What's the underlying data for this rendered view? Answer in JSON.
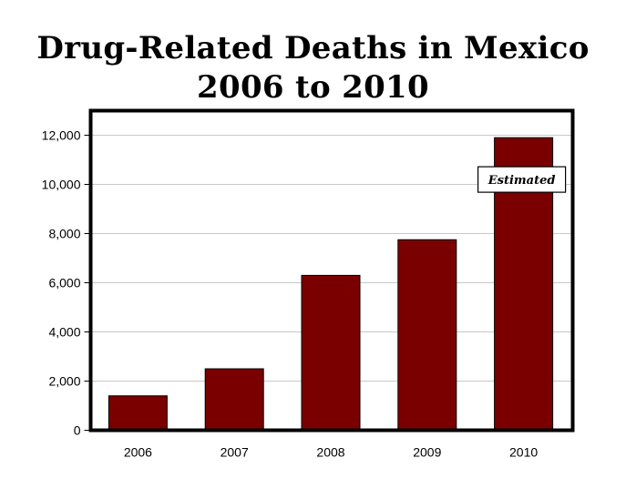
{
  "title_line1": "Drug-Related Deaths in Mexico",
  "title_line2": "2006 to 2010",
  "chart_data": {
    "type": "bar",
    "title": "Drug-Related Deaths in Mexico 2006 to 2010",
    "categories": [
      "2006",
      "2007",
      "2008",
      "2009",
      "2010"
    ],
    "values": [
      1400,
      2500,
      6300,
      7750,
      11900
    ],
    "ylim": [
      0,
      13000
    ],
    "yticks": [
      0,
      2000,
      4000,
      6000,
      8000,
      10000,
      12000
    ],
    "ytick_labels": [
      "0",
      "2,000",
      "4,000",
      "6,000",
      "8,000",
      "10,000",
      "12,000"
    ],
    "xlabel": "",
    "ylabel": "",
    "grid": true,
    "bar_color": "#7a0000",
    "annotations": [
      {
        "text": "Estimated",
        "category": "2010",
        "value": 10200
      }
    ]
  }
}
